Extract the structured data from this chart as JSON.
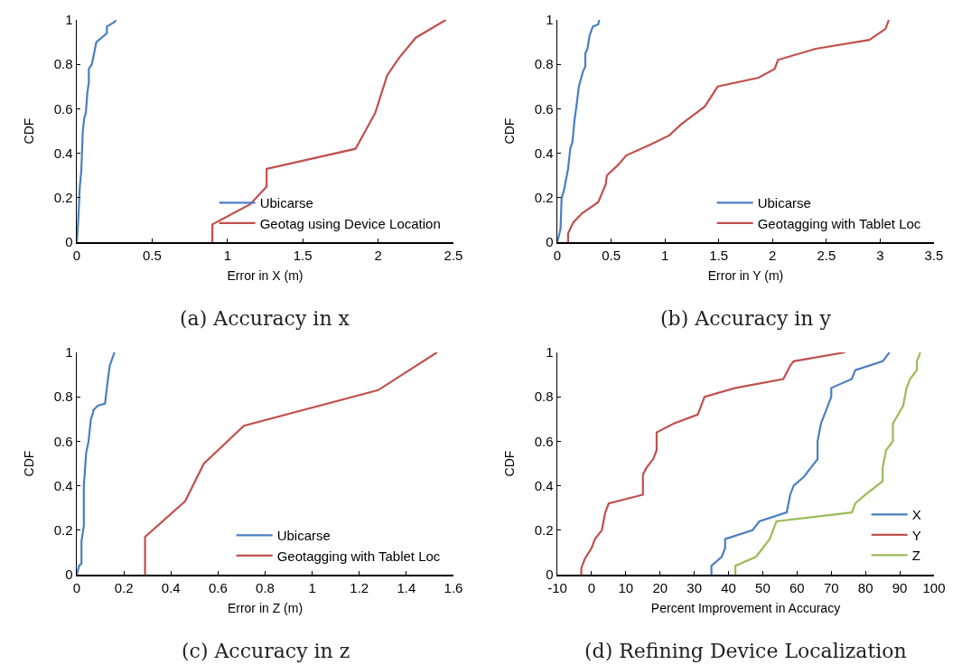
{
  "chart_data": [
    {
      "type": "line",
      "xlabel": "Error in X (m)",
      "ylabel": "CDF",
      "annotations": [
        "(a) Accuracy in x"
      ],
      "legend": "bottom right",
      "xlim": [
        0,
        2.5
      ],
      "ylim": [
        0,
        1
      ],
      "xticks": [
        0,
        0.5,
        1,
        1.5,
        2,
        2.5
      ],
      "yticks": [
        0,
        0.2,
        0.4,
        0.6,
        0.8,
        1
      ],
      "series": [
        {
          "name": "Ubicarse",
          "color": "#4a7fc1",
          "x": [
            0,
            0.01,
            0.02,
            0.03,
            0.04,
            0.05,
            0.06,
            0.07,
            0.08,
            0.08,
            0.1,
            0.13,
            0.2,
            0.2,
            0.25,
            0.26
          ],
          "values": [
            0,
            0.1,
            0.25,
            0.32,
            0.5,
            0.56,
            0.58,
            0.67,
            0.72,
            0.78,
            0.8,
            0.9,
            0.94,
            0.97,
            0.99,
            1
          ]
        },
        {
          "name": "Geotag using Device Location",
          "color": "#c0504d",
          "x": [
            0.9,
            0.9,
            1.15,
            1.26,
            1.26,
            1.85,
            1.98,
            2.06,
            2.14,
            2.25,
            2.45
          ],
          "values": [
            0,
            0.08,
            0.17,
            0.25,
            0.33,
            0.42,
            0.58,
            0.75,
            0.83,
            0.92,
            1
          ]
        }
      ]
    },
    {
      "type": "line",
      "xlabel": "Error in Y (m)",
      "ylabel": "CDF",
      "annotations": [
        "(b) Accuracy in y"
      ],
      "legend": "bottom right",
      "xlim": [
        0,
        3.5
      ],
      "ylim": [
        0,
        1
      ],
      "xticks": [
        0,
        0.5,
        1,
        1.5,
        2,
        2.5,
        3,
        3.5
      ],
      "yticks": [
        0,
        0.2,
        0.4,
        0.6,
        0.8,
        1
      ],
      "series": [
        {
          "name": "Ubicarse",
          "color": "#4a7fc1",
          "x": [
            0,
            0.03,
            0.04,
            0.06,
            0.1,
            0.12,
            0.14,
            0.16,
            0.18,
            0.2,
            0.24,
            0.26,
            0.26,
            0.28,
            0.3,
            0.33,
            0.38,
            0.39
          ],
          "values": [
            0,
            0.06,
            0.2,
            0.23,
            0.33,
            0.42,
            0.45,
            0.55,
            0.62,
            0.7,
            0.77,
            0.79,
            0.85,
            0.87,
            0.93,
            0.97,
            0.98,
            1
          ]
        },
        {
          "name": "Geotagging with Tablet Loc",
          "color": "#c0504d",
          "x": [
            0.1,
            0.1,
            0.15,
            0.23,
            0.38,
            0.45,
            0.46,
            0.57,
            0.64,
            0.87,
            1.04,
            1.15,
            1.37,
            1.49,
            1.87,
            2.02,
            2.05,
            2.4,
            2.9,
            3.05,
            3.08
          ],
          "values": [
            0,
            0.04,
            0.09,
            0.13,
            0.18,
            0.26,
            0.3,
            0.35,
            0.39,
            0.44,
            0.48,
            0.53,
            0.61,
            0.7,
            0.74,
            0.78,
            0.82,
            0.87,
            0.91,
            0.96,
            1
          ]
        }
      ]
    },
    {
      "type": "line",
      "xlabel": "Error in Z (m)",
      "ylabel": "CDF",
      "annotations": [
        "(c) Accuracy in z"
      ],
      "legend": "bottom right",
      "xlim": [
        0,
        1.6
      ],
      "ylim": [
        0,
        1
      ],
      "xticks": [
        0,
        0.2,
        0.4,
        0.6,
        0.8,
        1,
        1.2,
        1.4,
        1.6
      ],
      "yticks": [
        0,
        0.2,
        0.4,
        0.6,
        0.8,
        1
      ],
      "series": [
        {
          "name": "Ubicarse",
          "color": "#4a7fc1",
          "x": [
            0,
            0.01,
            0.02,
            0.02,
            0.03,
            0.03,
            0.04,
            0.05,
            0.06,
            0.07,
            0.07,
            0.09,
            0.12,
            0.13,
            0.14,
            0.16
          ],
          "values": [
            0,
            0.04,
            0.05,
            0.15,
            0.22,
            0.4,
            0.55,
            0.6,
            0.7,
            0.73,
            0.74,
            0.76,
            0.77,
            0.86,
            0.94,
            1
          ]
        },
        {
          "name": "Geotagging with Tablet Loc",
          "color": "#c0504d",
          "x": [
            0.29,
            0.29,
            0.46,
            0.54,
            0.71,
            1.28,
            1.53
          ],
          "values": [
            0,
            0.17,
            0.33,
            0.5,
            0.67,
            0.83,
            1
          ]
        }
      ]
    },
    {
      "type": "line",
      "xlabel": "Percent Improvement in Accuracy",
      "ylabel": "CDF",
      "annotations": [
        "(d) Refining Device Localization"
      ],
      "legend": "bottom right",
      "xlim": [
        -10,
        100
      ],
      "ylim": [
        0,
        1
      ],
      "xticks": [
        -10,
        0,
        10,
        20,
        30,
        40,
        50,
        60,
        70,
        80,
        90,
        100
      ],
      "yticks": [
        0,
        0.2,
        0.4,
        0.6,
        0.8,
        1
      ],
      "series": [
        {
          "name": "X",
          "color": "#4a7fc1",
          "x": [
            35,
            35,
            38,
            39,
            39,
            47,
            49,
            57,
            58,
            59,
            62,
            64,
            66,
            66,
            67,
            68,
            69,
            70,
            70,
            76,
            77,
            85,
            87
          ],
          "values": [
            0,
            0.04,
            0.08,
            0.12,
            0.16,
            0.2,
            0.24,
            0.28,
            0.36,
            0.4,
            0.44,
            0.48,
            0.52,
            0.6,
            0.68,
            0.72,
            0.76,
            0.8,
            0.84,
            0.88,
            0.92,
            0.96,
            1
          ]
        },
        {
          "name": "Y",
          "color": "#c0504d",
          "x": [
            -3,
            -3,
            -2,
            0,
            1,
            3,
            4,
            5,
            15,
            15,
            16,
            18,
            19,
            19,
            24,
            31,
            32,
            33,
            42,
            56,
            58,
            59,
            74
          ],
          "values": [
            0,
            0.03,
            0.07,
            0.12,
            0.16,
            0.2,
            0.28,
            0.32,
            0.36,
            0.45,
            0.48,
            0.52,
            0.56,
            0.64,
            0.68,
            0.72,
            0.76,
            0.8,
            0.84,
            0.88,
            0.94,
            0.96,
            1
          ]
        },
        {
          "name": "Z",
          "color": "#9bbb59",
          "x": [
            42,
            42,
            48,
            50,
            52,
            53,
            54,
            76,
            77,
            80,
            85,
            85,
            86,
            88,
            88,
            91,
            92,
            93,
            95,
            95,
            96
          ],
          "values": [
            0,
            0.04,
            0.08,
            0.12,
            0.16,
            0.2,
            0.24,
            0.28,
            0.32,
            0.36,
            0.42,
            0.48,
            0.56,
            0.6,
            0.68,
            0.76,
            0.84,
            0.88,
            0.92,
            0.96,
            1
          ]
        }
      ]
    }
  ]
}
